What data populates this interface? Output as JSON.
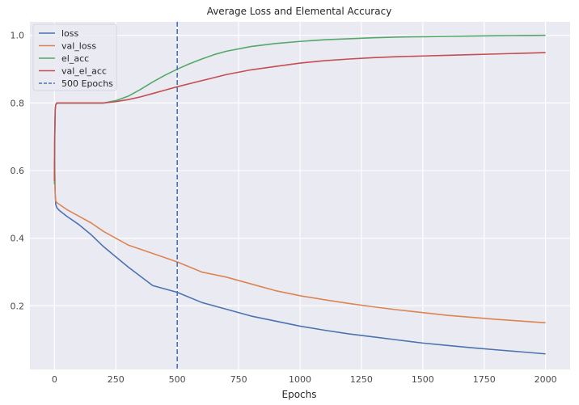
{
  "chart_data": {
    "type": "line",
    "title": "Average Loss and Elemental Accuracy",
    "xlabel": "Epochs",
    "ylabel": "",
    "xlim": [
      -100,
      2100
    ],
    "ylim": [
      0.012,
      1.04
    ],
    "xticks": [
      0,
      250,
      500,
      750,
      1000,
      1250,
      1500,
      1750,
      2000
    ],
    "yticks": [
      0.2,
      0.4,
      0.6,
      0.8,
      1.0
    ],
    "xtick_labels": [
      "0",
      "250",
      "500",
      "750",
      "1000",
      "1250",
      "1500",
      "1750",
      "2000"
    ],
    "ytick_labels": [
      "0.2",
      "0.4",
      "0.6",
      "0.8",
      "1.0"
    ],
    "grid": true,
    "legend_position": "top-left",
    "vline": {
      "x": 500,
      "label": "500 Epochs",
      "color": "#4c72b0",
      "style": "dashed"
    },
    "series": [
      {
        "name": "loss",
        "color": "#4c72b0",
        "x": [
          0,
          1,
          3,
          5,
          10,
          20,
          50,
          100,
          150,
          200,
          250,
          300,
          400,
          500,
          600,
          700,
          800,
          900,
          1000,
          1100,
          1200,
          1300,
          1400,
          1500,
          1600,
          1700,
          1800,
          1900,
          2000
        ],
        "y": [
          0.63,
          0.6,
          0.53,
          0.5,
          0.49,
          0.482,
          0.465,
          0.44,
          0.41,
          0.375,
          0.345,
          0.315,
          0.26,
          0.24,
          0.21,
          0.19,
          0.17,
          0.155,
          0.14,
          0.128,
          0.117,
          0.108,
          0.099,
          0.09,
          0.083,
          0.076,
          0.07,
          0.064,
          0.058
        ]
      },
      {
        "name": "val_loss",
        "color": "#dd8452",
        "x": [
          0,
          1,
          3,
          5,
          10,
          20,
          50,
          100,
          150,
          200,
          250,
          300,
          400,
          500,
          600,
          700,
          800,
          900,
          1000,
          1100,
          1200,
          1300,
          1400,
          1500,
          1600,
          1700,
          1800,
          1900,
          2000
        ],
        "y": [
          0.62,
          0.58,
          0.53,
          0.51,
          0.505,
          0.5,
          0.485,
          0.465,
          0.445,
          0.42,
          0.4,
          0.38,
          0.355,
          0.33,
          0.3,
          0.285,
          0.265,
          0.245,
          0.23,
          0.218,
          0.207,
          0.197,
          0.188,
          0.18,
          0.172,
          0.166,
          0.16,
          0.155,
          0.15
        ]
      },
      {
        "name": "el_acc",
        "color": "#55a868",
        "x": [
          0,
          1,
          3,
          5,
          10,
          20,
          50,
          100,
          150,
          200,
          250,
          300,
          350,
          400,
          450,
          500,
          550,
          600,
          650,
          700,
          800,
          900,
          1000,
          1100,
          1200,
          1300,
          1400,
          1500,
          1600,
          1700,
          1800,
          1900,
          2000
        ],
        "y": [
          0.56,
          0.7,
          0.78,
          0.795,
          0.8,
          0.8,
          0.8,
          0.8,
          0.8,
          0.8,
          0.807,
          0.82,
          0.84,
          0.862,
          0.882,
          0.9,
          0.916,
          0.93,
          0.943,
          0.953,
          0.967,
          0.976,
          0.982,
          0.987,
          0.99,
          0.993,
          0.995,
          0.996,
          0.997,
          0.998,
          0.999,
          0.9995,
          1.0
        ]
      },
      {
        "name": "val_el_acc",
        "color": "#c44e52",
        "x": [
          0,
          1,
          3,
          5,
          10,
          20,
          50,
          100,
          150,
          200,
          250,
          300,
          350,
          400,
          450,
          500,
          600,
          700,
          800,
          900,
          1000,
          1100,
          1200,
          1300,
          1400,
          1500,
          1600,
          1700,
          1800,
          1900,
          2000
        ],
        "y": [
          0.57,
          0.7,
          0.78,
          0.795,
          0.8,
          0.8,
          0.8,
          0.8,
          0.8,
          0.8,
          0.804,
          0.81,
          0.818,
          0.828,
          0.838,
          0.848,
          0.866,
          0.884,
          0.898,
          0.908,
          0.918,
          0.925,
          0.93,
          0.934,
          0.937,
          0.939,
          0.941,
          0.943,
          0.945,
          0.947,
          0.949
        ]
      }
    ]
  }
}
